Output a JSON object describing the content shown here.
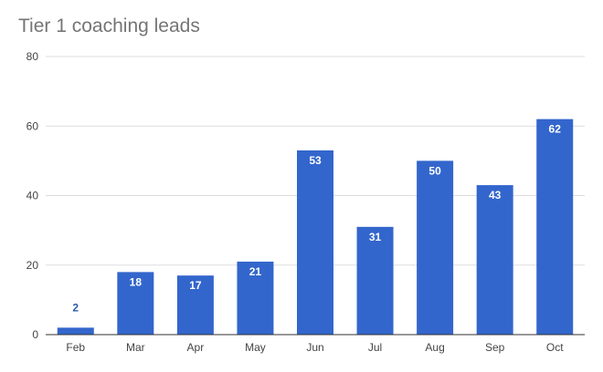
{
  "chart_data": {
    "type": "bar",
    "title": "Tier 1 coaching leads",
    "xlabel": "",
    "ylabel": "",
    "categories": [
      "Feb",
      "Mar",
      "Apr",
      "May",
      "Jun",
      "Jul",
      "Aug",
      "Sep",
      "Oct"
    ],
    "values": [
      2,
      18,
      17,
      21,
      53,
      31,
      50,
      43,
      62
    ],
    "ylim": [
      0,
      80
    ],
    "yticks": [
      0,
      20,
      40,
      60,
      80
    ],
    "grid": true,
    "legend": "none",
    "colors": {
      "bar": "#3366cc",
      "label_inside": "#ffffff",
      "label_outside": "#2a5db0",
      "grid": "#dddddd",
      "axis": "#333333"
    }
  }
}
